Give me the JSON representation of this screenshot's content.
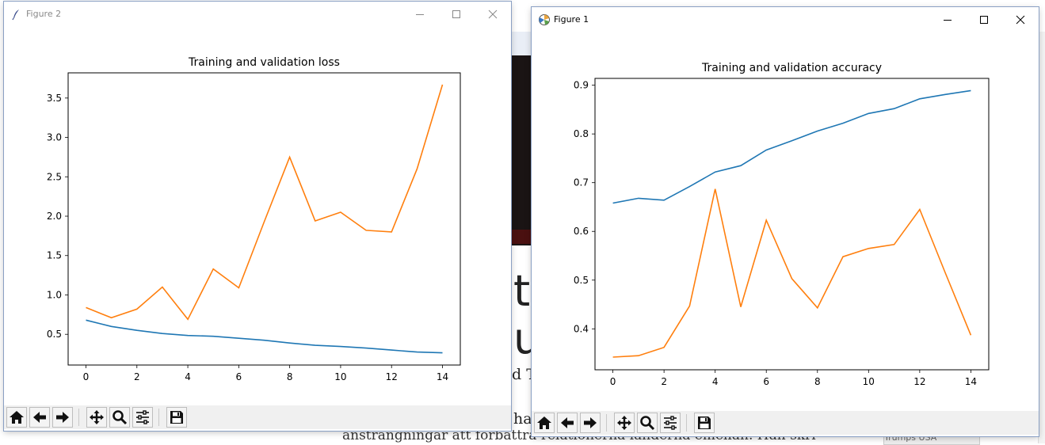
{
  "background": {
    "headline": "t",
    "headline_line2": "ul",
    "subline": "d T",
    "paragraph_fragment": "ansträngningar att förbättra relationerna länderna emellan. Han skriver",
    "side_text": "ha",
    "footer_box": "Trumps USA"
  },
  "figure2": {
    "title": "Figure 2",
    "colors": {
      "train": "#1f77b4",
      "val": "#ff7f0e"
    },
    "chart_data": {
      "type": "line",
      "title": "Training and validation loss",
      "x": [
        0,
        1,
        2,
        3,
        4,
        5,
        6,
        7,
        8,
        9,
        10,
        11,
        12,
        13,
        14
      ],
      "xticks": [
        0,
        2,
        4,
        6,
        8,
        10,
        12,
        14
      ],
      "yticks": [
        0.5,
        1.0,
        1.5,
        2.0,
        2.5,
        3.0,
        3.5
      ],
      "ytick_labels": [
        "0.5",
        "1.0",
        "1.5",
        "2.0",
        "2.5",
        "3.0",
        "3.5"
      ],
      "xlim": [
        -0.7,
        14.7
      ],
      "ylim": [
        0.11,
        3.82
      ],
      "series": [
        {
          "values": [
            0.68,
            0.6,
            0.55,
            0.51,
            0.485,
            0.475,
            0.45,
            0.425,
            0.39,
            0.36,
            0.345,
            0.325,
            0.3,
            0.275,
            0.265
          ]
        },
        {
          "values": [
            0.84,
            0.71,
            0.82,
            1.1,
            0.69,
            1.33,
            1.09,
            1.93,
            2.75,
            1.94,
            2.05,
            1.82,
            1.8,
            2.6,
            3.67
          ]
        }
      ]
    }
  },
  "figure1": {
    "title": "Figure 1",
    "colors": {
      "train": "#1f77b4",
      "val": "#ff7f0e"
    },
    "chart_data": {
      "type": "line",
      "title": "Training and validation accuracy",
      "x": [
        0,
        1,
        2,
        3,
        4,
        5,
        6,
        7,
        8,
        9,
        10,
        11,
        12,
        13,
        14
      ],
      "xticks": [
        0,
        2,
        4,
        6,
        8,
        10,
        12,
        14
      ],
      "yticks": [
        0.4,
        0.5,
        0.6,
        0.7,
        0.8,
        0.9
      ],
      "ytick_labels": [
        "0.4",
        "0.5",
        "0.6",
        "0.7",
        "0.8",
        "0.9"
      ],
      "xlim": [
        -0.7,
        14.7
      ],
      "ylim": [
        0.316,
        0.914
      ],
      "series": [
        {
          "values": [
            0.658,
            0.668,
            0.664,
            0.692,
            0.722,
            0.735,
            0.767,
            0.786,
            0.806,
            0.822,
            0.842,
            0.852,
            0.872,
            0.881,
            0.889
          ]
        },
        {
          "values": [
            0.342,
            0.345,
            0.362,
            0.447,
            0.687,
            0.445,
            0.623,
            0.503,
            0.443,
            0.548,
            0.565,
            0.573,
            0.645,
            0.515,
            0.387
          ]
        }
      ]
    }
  },
  "toolbar": {
    "icons": [
      "home-icon",
      "back-arrow-icon",
      "forward-arrow-icon",
      "pan-icon",
      "zoom-icon",
      "configure-subplots-icon",
      "save-icon"
    ]
  }
}
